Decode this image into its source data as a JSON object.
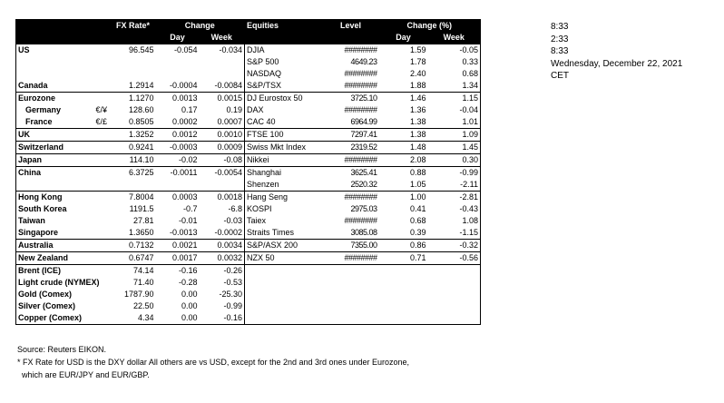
{
  "headers": {
    "fx_rate": "FX Rate*",
    "change": "Change",
    "day": "Day",
    "week": "Week",
    "equities": "Equities",
    "level": "Level",
    "change_pct": "Change (%)"
  },
  "rows": [
    {
      "country": "US",
      "sym": "",
      "fx": "96.545",
      "fx_day": "-0.054",
      "fx_week": "-0.034",
      "eq": "DJIA",
      "level": "########",
      "eq_day": "1.59",
      "eq_week": "-0.05",
      "top": true
    },
    {
      "country": "",
      "sym": "",
      "fx": "",
      "fx_day": "",
      "fx_week": "",
      "eq": "S&P 500",
      "level": "4649.23",
      "eq_day": "1.78",
      "eq_week": "0.33",
      "top": false
    },
    {
      "country": "",
      "sym": "",
      "fx": "",
      "fx_day": "",
      "fx_week": "",
      "eq": "NASDAQ",
      "level": "########",
      "eq_day": "2.40",
      "eq_week": "0.68",
      "top": false
    },
    {
      "country": "Canada",
      "sym": "",
      "fx": "1.2914",
      "fx_day": "-0.0004",
      "fx_week": "-0.0084",
      "eq": "S&P/TSX",
      "level": "########",
      "eq_day": "1.88",
      "eq_week": "1.34",
      "top": false
    },
    {
      "country": "Eurozone",
      "sym": "",
      "fx": "1.1270",
      "fx_day": "0.0013",
      "fx_week": "0.0015",
      "eq": "DJ Eurostox 50",
      "level": "3725.10",
      "eq_day": "1.46",
      "eq_week": "1.15",
      "top": true
    },
    {
      "country": "Germany",
      "sym": "€/¥",
      "fx": "128.60",
      "fx_day": "0.17",
      "fx_week": "0.19",
      "eq": "DAX",
      "level": "########",
      "eq_day": "1.36",
      "eq_week": "-0.04",
      "top": false,
      "indent": true
    },
    {
      "country": "France",
      "sym": "€/£",
      "fx": "0.8505",
      "fx_day": "0.0002",
      "fx_week": "0.0007",
      "eq": "CAC 40",
      "level": "6964.99",
      "eq_day": "1.38",
      "eq_week": "1.01",
      "top": false,
      "indent": true
    },
    {
      "country": "UK",
      "sym": "",
      "fx": "1.3252",
      "fx_day": "0.0012",
      "fx_week": "0.0010",
      "eq": "FTSE 100",
      "level": "7297.41",
      "eq_day": "1.38",
      "eq_week": "1.09",
      "top": true
    },
    {
      "country": "Switzerland",
      "sym": "",
      "fx": "0.9241",
      "fx_day": "-0.0003",
      "fx_week": "0.0009",
      "eq": "Swiss Mkt Index",
      "level": "2319.52",
      "eq_day": "1.48",
      "eq_week": "1.45",
      "top": true
    },
    {
      "country": "Japan",
      "sym": "",
      "fx": "114.10",
      "fx_day": "-0.02",
      "fx_week": "-0.08",
      "eq": "Nikkei",
      "level": "########",
      "eq_day": "2.08",
      "eq_week": "0.30",
      "top": true
    },
    {
      "country": "China",
      "sym": "",
      "fx": "6.3725",
      "fx_day": "-0.0011",
      "fx_week": "-0.0054",
      "eq": "Shanghai",
      "level": "3625.41",
      "eq_day": "0.88",
      "eq_week": "-0.99",
      "top": true
    },
    {
      "country": "",
      "sym": "",
      "fx": "",
      "fx_day": "",
      "fx_week": "",
      "eq": "Shenzen",
      "level": "2520.32",
      "eq_day": "1.05",
      "eq_week": "-2.11",
      "top": false
    },
    {
      "country": "Hong Kong",
      "sym": "",
      "fx": "7.8004",
      "fx_day": "0.0003",
      "fx_week": "0.0018",
      "eq": "Hang Seng",
      "level": "########",
      "eq_day": "1.00",
      "eq_week": "-2.81",
      "top": true
    },
    {
      "country": "South Korea",
      "sym": "",
      "fx": "1191.5",
      "fx_day": "-0.7",
      "fx_week": "-6.8",
      "eq": "KOSPI",
      "level": "2975.03",
      "eq_day": "0.41",
      "eq_week": "-0.43",
      "top": false
    },
    {
      "country": "Taiwan",
      "sym": "",
      "fx": "27.81",
      "fx_day": "-0.01",
      "fx_week": "-0.03",
      "eq": "Taiex",
      "level": "########",
      "eq_day": "0.68",
      "eq_week": "1.08",
      "top": false
    },
    {
      "country": "Singapore",
      "sym": "",
      "fx": "1.3650",
      "fx_day": "-0.0013",
      "fx_week": "-0.0002",
      "eq": "Straits Times",
      "level": "3085.08",
      "eq_day": "0.39",
      "eq_week": "-1.15",
      "top": false
    },
    {
      "country": "Australia",
      "sym": "",
      "fx": "0.7132",
      "fx_day": "0.0021",
      "fx_week": "0.0034",
      "eq": "S&P/ASX  200",
      "level": "7355.00",
      "eq_day": "0.86",
      "eq_week": "-0.32",
      "top": true
    },
    {
      "country": "New Zealand",
      "sym": "",
      "fx": "0.6747",
      "fx_day": "0.0017",
      "fx_week": "0.0032",
      "eq": "NZX 50",
      "level": "########",
      "eq_day": "0.71",
      "eq_week": "-0.56",
      "top": true
    }
  ],
  "commodities": [
    {
      "name": "Brent (ICE)",
      "value": "74.14",
      "day": "-0.16",
      "week": "-0.26",
      "top": true
    },
    {
      "name": "Light crude (NYMEX)",
      "value": "71.40",
      "day": "-0.28",
      "week": "-0.53",
      "top": false
    },
    {
      "name": "Gold (Comex)",
      "value": "1787.90",
      "day": "0.00",
      "week": "-25.30",
      "top": false
    },
    {
      "name": "Silver (Comex)",
      "value": "22.50",
      "day": "0.00",
      "week": "-0.99",
      "top": false
    },
    {
      "name": "Copper (Comex)",
      "value": "4.34",
      "day": "0.00",
      "week": "-0.16",
      "top": false
    }
  ],
  "notes": {
    "source": "Source:  Reuters EIKON.",
    "footnote1": "* FX Rate for USD is the DXY dollar  All others are vs USD, except for the 2nd and 3rd ones under Eurozone,",
    "footnote2": "  which are EUR/JPY and EUR/GBP."
  },
  "side": {
    "time1": "8:33",
    "time2": "2:33",
    "time3": "8:33",
    "date": "Wednesday, December 22, 2021",
    "tz": "CET"
  }
}
